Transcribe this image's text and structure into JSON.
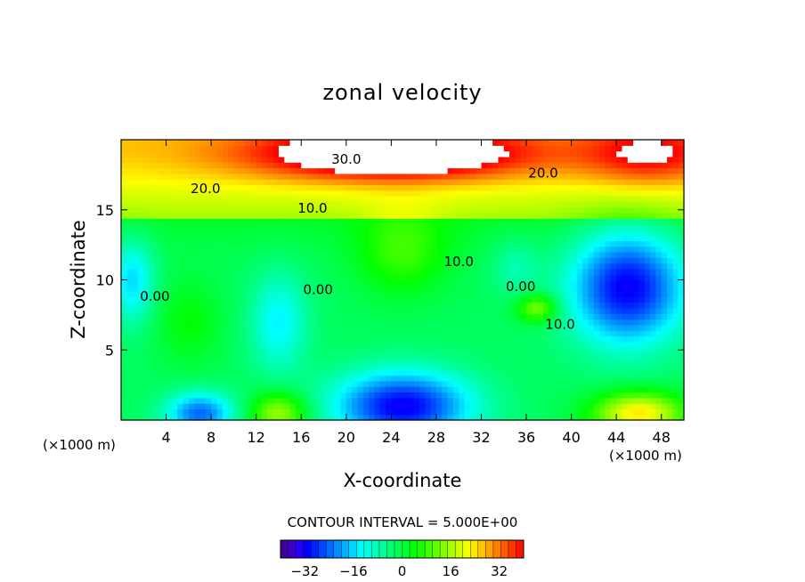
{
  "chart_data": {
    "type": "heatmap",
    "title": "zonal velocity",
    "xlabel": "X-coordinate",
    "ylabel": "Z-coordinate",
    "x_unit_left": "(×1000 m)",
    "x_unit_right": "(×1000 m)",
    "xlim": [
      0,
      50
    ],
    "ylim": [
      0,
      20
    ],
    "x_ticks": [
      4,
      8,
      12,
      16,
      20,
      24,
      28,
      32,
      36,
      40,
      44,
      48
    ],
    "y_ticks": [
      5,
      10,
      15
    ],
    "contour_interval_text": "CONTOUR INTERVAL = 5.000E+00",
    "colorbar": {
      "range": [
        -40,
        40
      ],
      "ticks": [
        -32,
        -16,
        0,
        16,
        32
      ],
      "tick_labels": [
        "−32",
        "−16",
        "0",
        "16",
        "32"
      ]
    },
    "contour_labels": [
      {
        "text": "30.0",
        "x": 20.0,
        "z": 18.3
      },
      {
        "text": "20.0",
        "x": 7.5,
        "z": 16.2
      },
      {
        "text": "20.0",
        "x": 37.5,
        "z": 17.3
      },
      {
        "text": "10.0",
        "x": 17.0,
        "z": 14.8
      },
      {
        "text": "10.0",
        "x": 30.0,
        "z": 11.0
      },
      {
        "text": "10.0",
        "x": 39.0,
        "z": 6.5
      },
      {
        "text": "0.00",
        "x": 3.0,
        "z": 8.5
      },
      {
        "text": "0.00",
        "x": 17.5,
        "z": 9.0
      },
      {
        "text": "0.00",
        "x": 35.5,
        "z": 9.2
      }
    ],
    "field_features": [
      {
        "x": 24,
        "z": 19,
        "v": 30,
        "sx": 12,
        "sz": 1.8
      },
      {
        "x": 47,
        "z": 19,
        "v": 16,
        "sx": 6,
        "sz": 2.2
      },
      {
        "x": 6,
        "z": 7,
        "v": 6,
        "sx": 3,
        "sz": 3
      },
      {
        "x": 14,
        "z": 7,
        "v": -12,
        "sx": 2.5,
        "sz": 3.5
      },
      {
        "x": 25,
        "z": 12,
        "v": 10,
        "sx": 4,
        "sz": 3
      },
      {
        "x": 37,
        "z": 8,
        "v": 16,
        "sx": 1.8,
        "sz": 1
      },
      {
        "x": 45,
        "z": 9.5,
        "v": -30,
        "sx": 5,
        "sz": 4
      },
      {
        "x": 25,
        "z": 1,
        "v": -30,
        "sx": 6,
        "sz": 2.5
      },
      {
        "x": 7,
        "z": 0.5,
        "v": -22,
        "sx": 3,
        "sz": 1.5
      },
      {
        "x": 14,
        "z": 0.5,
        "v": 18,
        "sx": 2.5,
        "sz": 1.5
      },
      {
        "x": 46,
        "z": 0.5,
        "v": 26,
        "sx": 4,
        "sz": 1.5
      },
      {
        "x": 1,
        "z": 10,
        "v": -14,
        "sx": 2,
        "sz": 3
      },
      {
        "x": 35,
        "z": 11,
        "v": -6,
        "sx": 2,
        "sz": 2
      }
    ]
  }
}
